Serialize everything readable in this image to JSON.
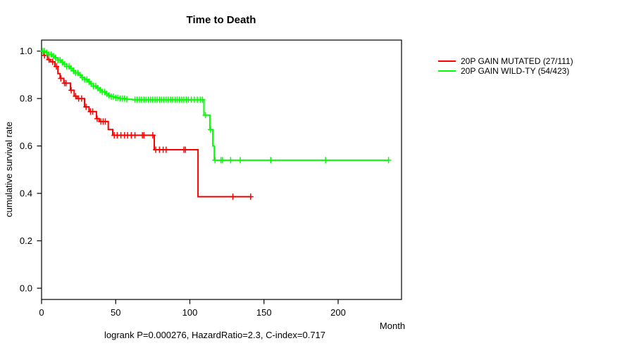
{
  "chart_data": {
    "type": "line",
    "subtype": "kaplan-meier-step",
    "title": "Time to Death",
    "xlabel": "Month",
    "ylabel": "cumulative survival rate",
    "annotation": "logrank P=0.000276, HazardRatio=2.3, C-index=0.717",
    "xlim": [
      0,
      243
    ],
    "ylim": [
      0.0,
      1.05
    ],
    "xticks": [
      0,
      50,
      100,
      150,
      200
    ],
    "yticks": [
      0.0,
      0.2,
      0.4,
      0.6,
      0.8,
      1.0
    ],
    "grid": false,
    "legend_position": "right-outside",
    "series": [
      {
        "name": "20P GAIN MUTATED (27/111)",
        "color": "#FF0000",
        "events": 27,
        "n": 111,
        "steps": [
          [
            0,
            1.0
          ],
          [
            1.5,
            0.982
          ],
          [
            4,
            0.964
          ],
          [
            6,
            0.955
          ],
          [
            9,
            0.935
          ],
          [
            11,
            0.905
          ],
          [
            12.5,
            0.885
          ],
          [
            15,
            0.865
          ],
          [
            19.5,
            0.835
          ],
          [
            22,
            0.81
          ],
          [
            24,
            0.8
          ],
          [
            29,
            0.765
          ],
          [
            32,
            0.745
          ],
          [
            37,
            0.715
          ],
          [
            39,
            0.703
          ],
          [
            45,
            0.669
          ],
          [
            48,
            0.645
          ],
          [
            76,
            0.584
          ],
          [
            105.5,
            0.386
          ]
        ],
        "end_month": 141.5,
        "censor_months": [
          2,
          5,
          7.5,
          10,
          13,
          15.5,
          16.5,
          20,
          23,
          25,
          27,
          30,
          33,
          34.5,
          37.5,
          40,
          41.5,
          43,
          49,
          51,
          53.5,
          56,
          58,
          60.5,
          63,
          68,
          69,
          75,
          77,
          79.5,
          82,
          84,
          96,
          97,
          129,
          141
        ]
      },
      {
        "name": "20P GAIN WILD-TY (54/423)",
        "color": "#00FF00",
        "events": 54,
        "n": 423,
        "steps": [
          [
            0,
            1.0
          ],
          [
            3,
            0.993
          ],
          [
            5,
            0.986
          ],
          [
            7,
            0.979
          ],
          [
            9,
            0.972
          ],
          [
            11,
            0.962
          ],
          [
            13,
            0.953
          ],
          [
            15,
            0.945
          ],
          [
            17,
            0.936
          ],
          [
            19,
            0.927
          ],
          [
            21,
            0.917
          ],
          [
            23,
            0.908
          ],
          [
            25,
            0.899
          ],
          [
            27,
            0.889
          ],
          [
            29,
            0.88
          ],
          [
            31,
            0.871
          ],
          [
            33,
            0.862
          ],
          [
            35,
            0.853
          ],
          [
            37,
            0.844
          ],
          [
            39,
            0.836
          ],
          [
            41,
            0.828
          ],
          [
            43,
            0.82
          ],
          [
            45,
            0.813
          ],
          [
            47,
            0.808
          ],
          [
            50,
            0.803
          ],
          [
            53,
            0.8
          ],
          [
            57,
            0.797
          ],
          [
            61,
            0.795
          ],
          [
            109.5,
            0.73
          ],
          [
            113.5,
            0.669
          ],
          [
            115.5,
            0.6
          ],
          [
            116.5,
            0.54
          ]
        ],
        "end_month": 234,
        "censor_months": [
          1,
          2,
          3.5,
          5,
          6.5,
          8,
          9.5,
          11,
          12.5,
          14,
          15.5,
          17,
          18.5,
          20,
          21.5,
          23,
          24.5,
          26,
          27.5,
          29,
          30.5,
          32,
          33.5,
          35,
          36.5,
          38,
          39.5,
          41,
          42.5,
          44,
          45.5,
          47,
          48.5,
          50,
          51.5,
          53,
          54.5,
          56,
          57.5,
          63,
          64.5,
          66,
          67.5,
          69,
          70.5,
          72,
          73.5,
          75,
          76.5,
          78,
          79.5,
          81,
          82.5,
          84,
          85.5,
          87,
          88.5,
          90,
          91.5,
          93,
          94.5,
          96,
          97.5,
          99,
          101,
          103,
          105,
          107,
          108.5,
          110.5,
          114,
          117,
          121,
          122,
          127.5,
          134,
          154.5,
          191.5,
          234
        ]
      }
    ]
  },
  "colors": {
    "mutated": "#FF0000",
    "wildtype": "#00FF00",
    "axis": "#000000",
    "background": "#FFFFFF"
  }
}
